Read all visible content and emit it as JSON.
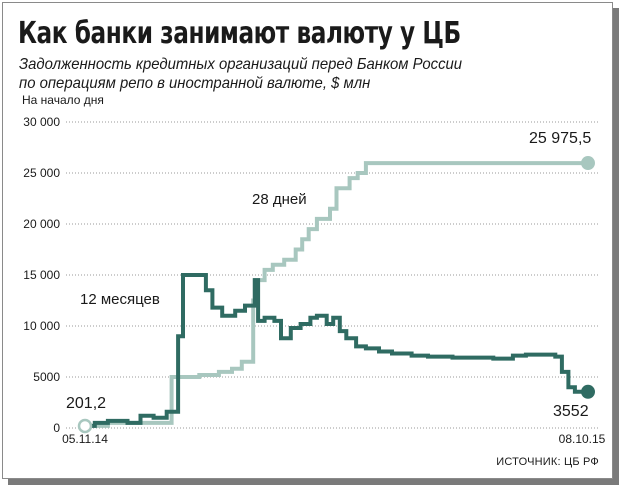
{
  "chart_data": {
    "type": "line",
    "title": "Как банки занимают валюту у ЦБ",
    "subtitle_lines": [
      "Задолженность кредитных организаций перед Банком России",
      "по операциям репо в иностранной валюте, $ млн"
    ],
    "ylabel": "На начало дня",
    "ylim": [
      0,
      30000
    ],
    "yticks": [
      0,
      5000,
      10000,
      15000,
      20000,
      25000,
      30000
    ],
    "ytick_labels": [
      "0",
      "5000",
      "10 000",
      "15 000",
      "20 000",
      "25 000",
      "30 000"
    ],
    "x_labels": [
      "05.11.14",
      "08.10.15"
    ],
    "grid": true,
    "source": "ИСТОЧНИК: ЦБ РФ",
    "colors": {
      "series_28": "#a8c7bf",
      "series_12": "#2f6b62"
    },
    "series": [
      {
        "name": "28 дней",
        "color": "#a8c7bf",
        "start_label": "201,2",
        "end_label": "25 975,5",
        "points": [
          [
            0,
            201
          ],
          [
            14,
            201
          ],
          [
            14,
            500
          ],
          [
            42,
            500
          ],
          [
            42,
            500
          ],
          [
            53,
            500
          ],
          [
            53,
            5000
          ],
          [
            70,
            5000
          ],
          [
            70,
            5200
          ],
          [
            82,
            5200
          ],
          [
            82,
            5500
          ],
          [
            90,
            5500
          ],
          [
            90,
            5800
          ],
          [
            96,
            5800
          ],
          [
            96,
            6500
          ],
          [
            103,
            6500
          ],
          [
            103,
            12500
          ],
          [
            104,
            12500
          ],
          [
            104,
            14500
          ],
          [
            110,
            14500
          ],
          [
            110,
            15500
          ],
          [
            115,
            15500
          ],
          [
            115,
            16000
          ],
          [
            122,
            16000
          ],
          [
            122,
            16500
          ],
          [
            129,
            16500
          ],
          [
            129,
            17500
          ],
          [
            133,
            17500
          ],
          [
            133,
            18500
          ],
          [
            137,
            18500
          ],
          [
            137,
            19500
          ],
          [
            142,
            19500
          ],
          [
            142,
            20500
          ],
          [
            150,
            20500
          ],
          [
            150,
            21500
          ],
          [
            154,
            21500
          ],
          [
            154,
            23500
          ],
          [
            162,
            23500
          ],
          [
            162,
            24500
          ],
          [
            167,
            24500
          ],
          [
            167,
            25000
          ],
          [
            172,
            25000
          ],
          [
            172,
            25975
          ],
          [
            308,
            25975
          ]
        ]
      },
      {
        "name": "12 месяцев",
        "color": "#2f6b62",
        "end_label": "3552",
        "points": [
          [
            0,
            201
          ],
          [
            6,
            201
          ],
          [
            6,
            500
          ],
          [
            14,
            500
          ],
          [
            14,
            700
          ],
          [
            26,
            700
          ],
          [
            26,
            500
          ],
          [
            34,
            500
          ],
          [
            34,
            1200
          ],
          [
            42,
            1200
          ],
          [
            42,
            1000
          ],
          [
            50,
            1000
          ],
          [
            50,
            1600
          ],
          [
            57,
            1600
          ],
          [
            57,
            9000
          ],
          [
            60,
            9000
          ],
          [
            60,
            15000
          ],
          [
            74,
            15000
          ],
          [
            74,
            13500
          ],
          [
            78,
            13500
          ],
          [
            78,
            11800
          ],
          [
            84,
            11800
          ],
          [
            84,
            11000
          ],
          [
            92,
            11000
          ],
          [
            92,
            11500
          ],
          [
            98,
            11500
          ],
          [
            98,
            12000
          ],
          [
            104,
            12000
          ],
          [
            104,
            14500
          ],
          [
            106,
            14500
          ],
          [
            106,
            10500
          ],
          [
            110,
            10500
          ],
          [
            110,
            10800
          ],
          [
            116,
            10800
          ],
          [
            116,
            10500
          ],
          [
            120,
            10500
          ],
          [
            120,
            8800
          ],
          [
            126,
            8800
          ],
          [
            126,
            9800
          ],
          [
            132,
            9800
          ],
          [
            132,
            10200
          ],
          [
            138,
            10200
          ],
          [
            138,
            10800
          ],
          [
            142,
            10800
          ],
          [
            142,
            11000
          ],
          [
            148,
            11000
          ],
          [
            148,
            10200
          ],
          [
            152,
            10200
          ],
          [
            152,
            10800
          ],
          [
            156,
            10800
          ],
          [
            156,
            9500
          ],
          [
            160,
            9500
          ],
          [
            160,
            8800
          ],
          [
            166,
            8800
          ],
          [
            166,
            8000
          ],
          [
            172,
            8000
          ],
          [
            172,
            7800
          ],
          [
            180,
            7800
          ],
          [
            180,
            7500
          ],
          [
            188,
            7500
          ],
          [
            188,
            7300
          ],
          [
            200,
            7300
          ],
          [
            200,
            7100
          ],
          [
            210,
            7100
          ],
          [
            210,
            7000
          ],
          [
            225,
            7000
          ],
          [
            225,
            6900
          ],
          [
            240,
            6900
          ],
          [
            240,
            6900
          ],
          [
            250,
            6900
          ],
          [
            250,
            6800
          ],
          [
            262,
            6800
          ],
          [
            262,
            7100
          ],
          [
            270,
            7100
          ],
          [
            270,
            7200
          ],
          [
            288,
            7200
          ],
          [
            288,
            7000
          ],
          [
            292,
            7000
          ],
          [
            292,
            5500
          ],
          [
            296,
            5500
          ],
          [
            296,
            4000
          ],
          [
            300,
            4000
          ],
          [
            300,
            3552
          ],
          [
            308,
            3552
          ]
        ]
      }
    ]
  }
}
